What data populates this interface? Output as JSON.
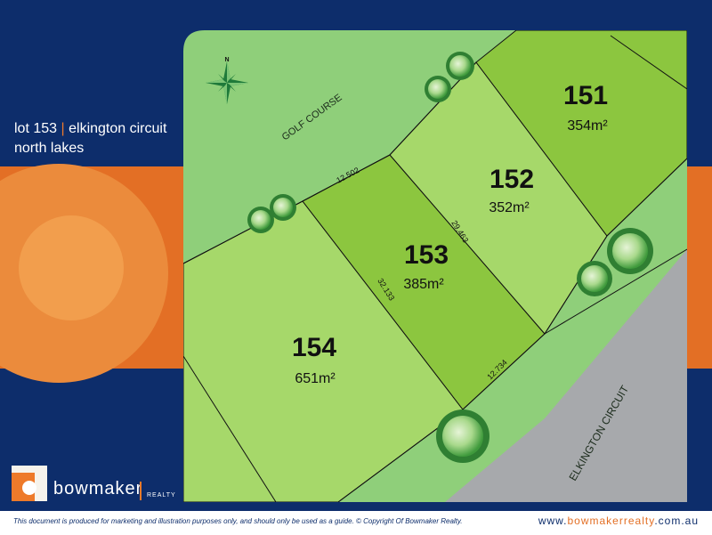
{
  "title": {
    "lot": "lot 153",
    "separator": "|",
    "street": "elkington circuit",
    "suburb": "north lakes"
  },
  "compass": {
    "north_label": "N",
    "icon": "compass-rose-icon"
  },
  "roads": {
    "golf_course": "GOLF COURSE",
    "elkington": "ELKINGTON CIRCUIT"
  },
  "lots": [
    {
      "number": "151",
      "area": "354m²"
    },
    {
      "number": "152",
      "area": "352m²"
    },
    {
      "number": "153",
      "area": "385m²"
    },
    {
      "number": "154",
      "area": "651m²"
    }
  ],
  "dimensions": {
    "top": "12.502",
    "right": "29.463",
    "left": "32.133",
    "bottom": "12.734"
  },
  "brand": {
    "name": "bowmaker",
    "tagline": "REALTY",
    "logo_icon": "bowmaker-b-logo-icon"
  },
  "footer": {
    "disclaimer": "This document is produced for marketing and illustration purposes only, and should only be used as a guide. © Copyright Of Bowmaker Realty.",
    "website_prefix": "www.",
    "website_name": "bowmakerrealty",
    "website_suffix": ".com.au"
  },
  "colors": {
    "navy": "#0d2d6b",
    "orange": "#e36f25",
    "grass": "#8fcf7a",
    "lot_light": "#a6d86a",
    "lot_highlight": "#8cc63f",
    "road": "#a7a9ac"
  }
}
